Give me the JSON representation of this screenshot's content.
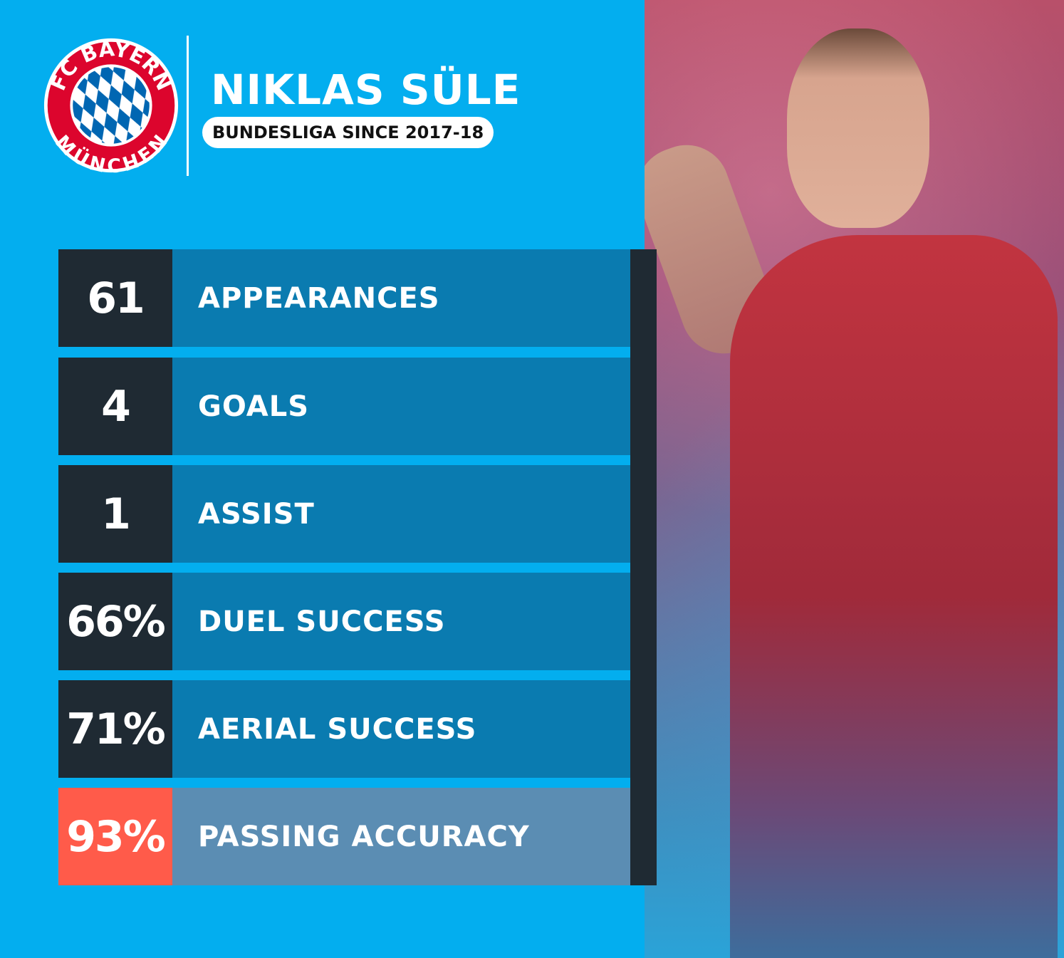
{
  "header": {
    "club_logo_text_top": "FC BAYERN",
    "club_logo_text_bottom": "MÜNCHEN",
    "player_name": "NIKLAS SÜLE",
    "subtitle": "BUNDESLIGA SINCE 2017-18"
  },
  "stats": [
    {
      "value": "61",
      "label": "APPEARANCES"
    },
    {
      "value": "4",
      "label": "GOALS"
    },
    {
      "value": "1",
      "label": "ASSIST"
    },
    {
      "value": "66%",
      "label": "DUEL SUCCESS"
    },
    {
      "value": "71%",
      "label": "AERIAL SUCCESS"
    },
    {
      "value": "93%",
      "label": "PASSING ACCURACY",
      "highlighted": true
    }
  ],
  "colors": {
    "background": "#03aeef",
    "stat_box": "#1f2a33",
    "label_bar": "#0a7bb0",
    "highlight_box": "#ff5b4a",
    "highlight_bar": "#5b8db3",
    "club_red": "#dc052d",
    "club_blue": "#0066b2"
  }
}
